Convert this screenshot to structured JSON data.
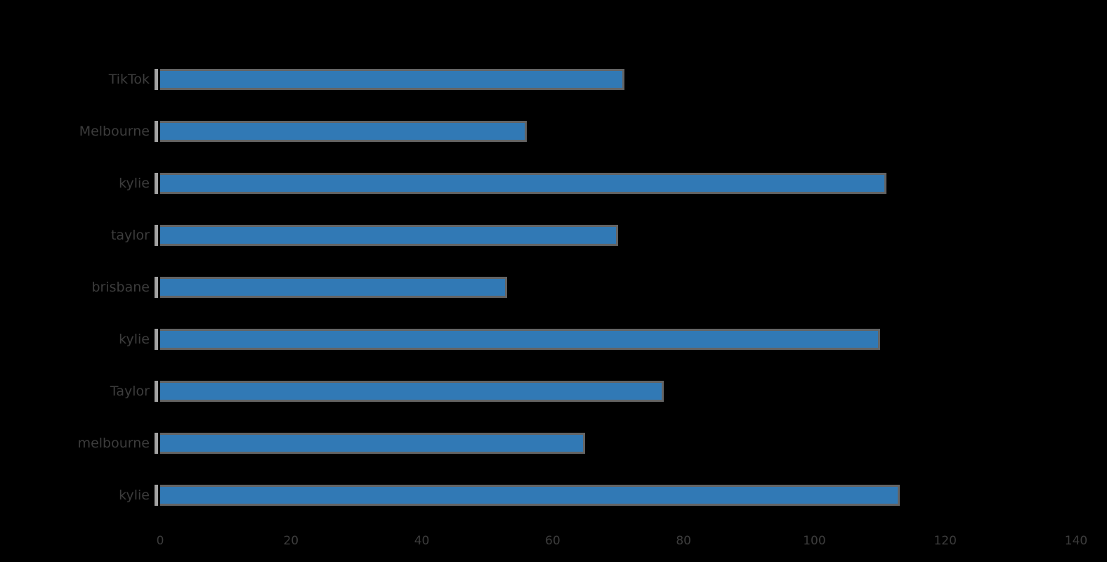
{
  "chart_data": {
    "type": "bar",
    "orientation": "horizontal",
    "title": "",
    "xlabel": "",
    "ylabel": "",
    "categories": [
      "TikTok",
      "Melbourne",
      "kylie",
      "taylor",
      "brisbane",
      "kylie",
      "Taylor",
      "melbourne",
      "kylie"
    ],
    "values": [
      71,
      56,
      111,
      70,
      53,
      110,
      77,
      65,
      113
    ],
    "xlim": [
      0,
      140
    ],
    "x_ticks": [
      0,
      20,
      40,
      60,
      80,
      100,
      120,
      140
    ],
    "grid": false,
    "legend": null,
    "colors": {
      "background": "#000000",
      "bar_fill": "#3179b5",
      "bar_edge": "#646464",
      "axis_spine": "#a3a3a3",
      "text": "#3c3c3c"
    }
  }
}
